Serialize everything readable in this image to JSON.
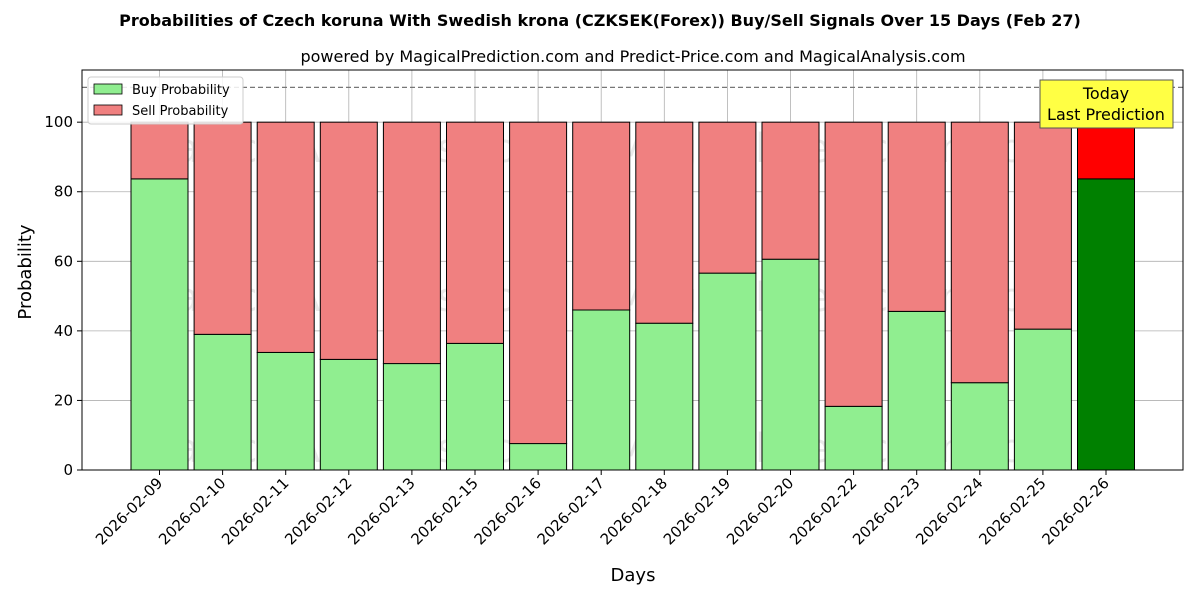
{
  "chart_data": {
    "type": "bar",
    "stacked": true,
    "title": "Probabilities of Czech koruna With Swedish krona (CZKSEK(Forex)) Buy/Sell Signals Over 15 Days (Feb 27)",
    "subtitle": "powered by MagicalPrediction.com and Predict-Price.com and MagicalAnalysis.com",
    "xlabel": "Days",
    "ylabel": "Probability",
    "ylim": [
      0,
      115
    ],
    "yticks": [
      0,
      20,
      40,
      60,
      80,
      100
    ],
    "grid": true,
    "legend_position": "top-left",
    "reference_line": 110,
    "categories": [
      "2026-02-09",
      "2026-02-10",
      "2026-02-11",
      "2026-02-12",
      "2026-02-13",
      "2026-02-15",
      "2026-02-16",
      "2026-02-17",
      "2026-02-18",
      "2026-02-19",
      "2026-02-20",
      "2026-02-22",
      "2026-02-23",
      "2026-02-24",
      "2026-02-25",
      "2026-02-26"
    ],
    "series": [
      {
        "name": "Buy Probability",
        "color": "#90ee90",
        "highlight_color": "#008000",
        "values": [
          83.7,
          39.0,
          33.8,
          31.8,
          30.6,
          36.4,
          7.6,
          46.0,
          42.2,
          56.6,
          60.6,
          18.3,
          45.6,
          25.1,
          40.5,
          83.7
        ]
      },
      {
        "name": "Sell Probability",
        "color": "#f08080",
        "highlight_color": "#ff0000",
        "values": [
          16.3,
          61.0,
          66.2,
          68.2,
          69.4,
          63.6,
          92.4,
          54.0,
          57.8,
          43.4,
          39.4,
          81.7,
          54.4,
          74.9,
          59.5,
          16.3
        ]
      }
    ],
    "annotation": {
      "lines": [
        "Today",
        "Last Prediction"
      ],
      "color": "#ffff44"
    },
    "watermarks": [
      "MagicalAnalysis.com",
      "MagicalPrediction.com"
    ]
  }
}
